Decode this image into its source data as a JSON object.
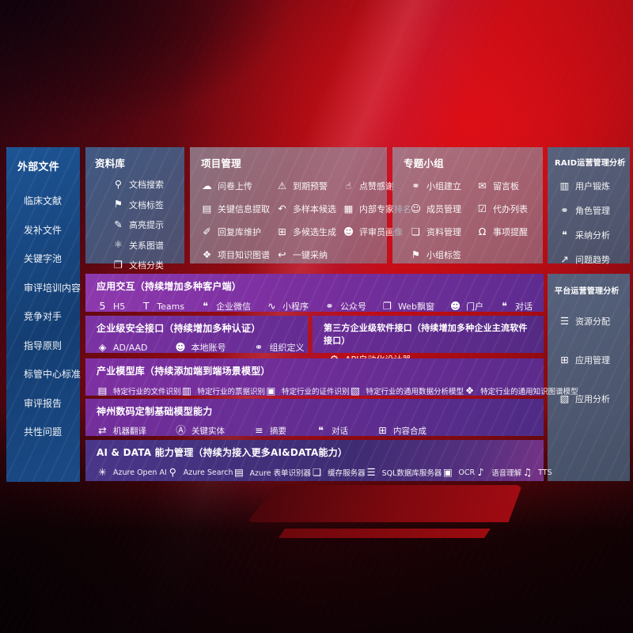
{
  "colors": {
    "background_red": "#ba0c14",
    "sidebar_blue": "#1a4a86",
    "panel_gray": "#93868f",
    "panel_slate": "#4d5f78",
    "panel_purple": "#7a2f9f",
    "panel_indigo": "#3e2c73"
  },
  "icon_glyphs": {
    "doc-search-icon": "⚲",
    "doc-tag-icon": "⚑",
    "highlight-icon": "✎",
    "relation-graph-icon": "⚛",
    "doc-category-icon": "❐",
    "cloud-upload-icon": "☁",
    "info-extract-icon": "▤",
    "reply-edit-icon": "✐",
    "knowledge-graph-icon": "❖",
    "alarm-icon": "⚠",
    "multi-sample-icon": "↶",
    "multi-generate-icon": "⊞",
    "one-click-adopt-icon": "↩",
    "thumbs-up-icon": "☝",
    "expert-rank-icon": "▦",
    "reviewer-portrait-icon": "☻",
    "group-create-icon": "⚭",
    "member-add-icon": "☺",
    "data-manage-icon": "❏",
    "group-tag-icon": "⚑",
    "message-board-icon": "✉",
    "todo-list-icon": "☑",
    "remind-bell-icon": "Ω",
    "user-train-icon": "▥",
    "role-manage-icon": "⚭",
    "adopt-analysis-icon": "❝",
    "issue-trend-icon": "↗",
    "h5-icon": "5",
    "teams-icon": "T",
    "wechat-work-icon": "❝",
    "miniprogram-icon": "∿",
    "official-account-icon": "⚭",
    "web-window-icon": "❐",
    "portal-icon": "☻",
    "dialog-icon": "❝",
    "ad-aad-icon": "◈",
    "local-account-icon": "☻",
    "org-define-icon": "⚭",
    "api-designer-icon": "⚙",
    "file-recognize-icon": "▤",
    "receipt-recognize-icon": "▥",
    "cert-recognize-icon": "▣",
    "data-analysis-model-icon": "▧",
    "kg-model-icon": "❖",
    "translate-icon": "⇄",
    "key-entity-icon": "Ⓐ",
    "summary-icon": "≡",
    "content-compose-icon": "⊞",
    "openai-icon": "✳",
    "azure-search-icon": "⚲",
    "form-recognizer-icon": "▤",
    "cache-server-icon": "❏",
    "sql-server-icon": "☰",
    "ocr-icon": "▣",
    "speech-icon": "♪",
    "tts-icon": "♫",
    "resource-alloc-icon": "☰",
    "app-manage-icon": "⊞",
    "app-analysis-icon": "▧"
  },
  "sidebar": {
    "title": "外部文件",
    "items": [
      {
        "label": "临床文献"
      },
      {
        "label": "发补文件"
      },
      {
        "label": "关键字池"
      },
      {
        "label": "审评培训内容"
      },
      {
        "label": "竞争对手"
      },
      {
        "label": "指导原则"
      },
      {
        "label": "标管中心标准"
      },
      {
        "label": "审评报告"
      },
      {
        "label": "共性问题"
      }
    ]
  },
  "library": {
    "title": "资料库",
    "items": [
      {
        "icon": "doc-search-icon",
        "label": "文档搜索"
      },
      {
        "icon": "doc-tag-icon",
        "label": "文档标签"
      },
      {
        "icon": "highlight-icon",
        "label": "高亮提示"
      },
      {
        "icon": "relation-graph-icon",
        "label": "关系图谱"
      },
      {
        "icon": "doc-category-icon",
        "label": "文档分类"
      }
    ]
  },
  "project": {
    "title": "项目管理",
    "col1": [
      {
        "icon": "cloud-upload-icon",
        "label": "问卷上传"
      },
      {
        "icon": "info-extract-icon",
        "label": "关键信息提取"
      },
      {
        "icon": "reply-edit-icon",
        "label": "回复库维护"
      },
      {
        "icon": "knowledge-graph-icon",
        "label": "项目知识图谱"
      }
    ],
    "col2": [
      {
        "icon": "alarm-icon",
        "label": "到期预警"
      },
      {
        "icon": "multi-sample-icon",
        "label": "多样本候选"
      },
      {
        "icon": "multi-generate-icon",
        "label": "多候选生成"
      },
      {
        "icon": "one-click-adopt-icon",
        "label": "一键采纳"
      }
    ],
    "col3": [
      {
        "icon": "thumbs-up-icon",
        "label": "点赞感谢"
      },
      {
        "icon": "expert-rank-icon",
        "label": "内部专家排名"
      },
      {
        "icon": "reviewer-portrait-icon",
        "label": "评审员画像"
      }
    ]
  },
  "group": {
    "title": "专题小组",
    "col1": [
      {
        "icon": "group-create-icon",
        "label": "小组建立"
      },
      {
        "icon": "member-add-icon",
        "label": "成员管理"
      },
      {
        "icon": "data-manage-icon",
        "label": "资料管理"
      },
      {
        "icon": "group-tag-icon",
        "label": "小组标签"
      }
    ],
    "col2": [
      {
        "icon": "message-board-icon",
        "label": "留言板"
      },
      {
        "icon": "todo-list-icon",
        "label": "代办列表"
      },
      {
        "icon": "remind-bell-icon",
        "label": "事项提醒"
      }
    ]
  },
  "raid": {
    "title": "RAID运营管理分析",
    "items": [
      {
        "icon": "user-train-icon",
        "label": "用户锻炼"
      },
      {
        "icon": "role-manage-icon",
        "label": "角色管理"
      },
      {
        "icon": "adopt-analysis-icon",
        "label": "采纳分析"
      },
      {
        "icon": "issue-trend-icon",
        "label": "问题趋势"
      }
    ]
  },
  "platform": {
    "title": "平台运营管理分析",
    "items": [
      {
        "icon": "resource-alloc-icon",
        "label": "资源分配"
      },
      {
        "icon": "app-manage-icon",
        "label": "应用管理"
      },
      {
        "icon": "app-analysis-icon",
        "label": "应用分析"
      }
    ]
  },
  "interact": {
    "title": "应用交互（持续增加多种客户端）",
    "items": [
      {
        "icon": "h5-icon",
        "label": "H5"
      },
      {
        "icon": "teams-icon",
        "label": "Teams"
      },
      {
        "icon": "wechat-work-icon",
        "label": "企业微信"
      },
      {
        "icon": "miniprogram-icon",
        "label": "小程序"
      },
      {
        "icon": "official-account-icon",
        "label": "公众号"
      },
      {
        "icon": "web-window-icon",
        "label": "Web飘窗"
      },
      {
        "icon": "portal-icon",
        "label": "门户"
      },
      {
        "icon": "dialog-icon",
        "label": "对话"
      }
    ]
  },
  "security": {
    "title": "企业级安全接口（持续增加多种认证）",
    "items": [
      {
        "icon": "ad-aad-icon",
        "label": "AD/AAD"
      },
      {
        "icon": "local-account-icon",
        "label": "本地账号"
      },
      {
        "icon": "org-define-icon",
        "label": "组织定义"
      }
    ]
  },
  "thirdparty": {
    "title": "第三方企业级软件接口（持续增加多种企业主流软件接口）",
    "items": [
      {
        "icon": "api-designer-icon",
        "label": "API自动化设计器"
      }
    ]
  },
  "industry": {
    "title": "产业模型库（持续添加端到端场景模型）",
    "items": [
      {
        "icon": "file-recognize-icon",
        "label": "特定行业的文件识别"
      },
      {
        "icon": "receipt-recognize-icon",
        "label": "特定行业的票据识别"
      },
      {
        "icon": "cert-recognize-icon",
        "label": "特定行业的证件识别"
      },
      {
        "icon": "data-analysis-model-icon",
        "label": "特定行业的通用数据分析模型"
      },
      {
        "icon": "kg-model-icon",
        "label": "特定行业的通用知识图谱模型"
      }
    ]
  },
  "base_model": {
    "title": "神州数码定制基础模型能力",
    "items": [
      {
        "icon": "translate-icon",
        "label": "机器翻译"
      },
      {
        "icon": "key-entity-icon",
        "label": "关键实体"
      },
      {
        "icon": "summary-icon",
        "label": "摘要"
      },
      {
        "icon": "dialog-icon",
        "label": "对话"
      },
      {
        "icon": "content-compose-icon",
        "label": "内容合成"
      }
    ]
  },
  "aidata": {
    "title": "AI & DATA 能力管理（持续为接入更多AI&DATA能力）",
    "items": [
      {
        "icon": "openai-icon",
        "label": "Azure Open AI"
      },
      {
        "icon": "azure-search-icon",
        "label": "Azure Search"
      },
      {
        "icon": "form-recognizer-icon",
        "label": "Azure 表单识别器"
      },
      {
        "icon": "cache-server-icon",
        "label": "缓存服务器"
      },
      {
        "icon": "sql-server-icon",
        "label": "SQL数据库服务器"
      },
      {
        "icon": "ocr-icon",
        "label": "OCR"
      },
      {
        "icon": "speech-icon",
        "label": "语音理解"
      },
      {
        "icon": "tts-icon",
        "label": "TTS"
      }
    ]
  }
}
